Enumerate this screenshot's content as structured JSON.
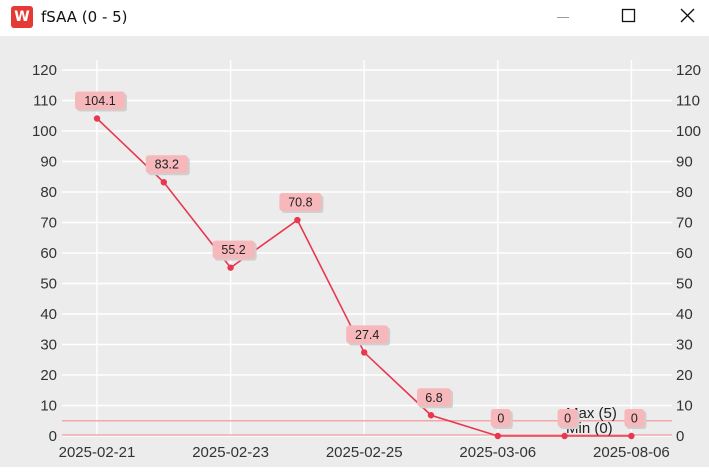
{
  "window": {
    "title": "fSAA (0 - 5)",
    "app_icon_letter": "W",
    "controls": [
      "minimize-icon",
      "maximize-icon",
      "close-icon"
    ]
  },
  "colors": {
    "background": "#ececec",
    "grid": "#ffffff",
    "line": "#e8384f",
    "label_bg": "#f7b8bb",
    "threshold": "#f2a8aa",
    "axis_text": "#333333"
  },
  "chart_data": {
    "type": "line",
    "title": "",
    "x_ticks": [
      "2025-02-21",
      "2025-02-23",
      "2025-02-25",
      "2025-03-06",
      "2025-08-06"
    ],
    "points": [
      {
        "index": 0,
        "value": 104.1,
        "label": "104.1"
      },
      {
        "index": 1,
        "value": 83.2,
        "label": "83.2"
      },
      {
        "index": 2,
        "value": 55.2,
        "label": "55.2"
      },
      {
        "index": 3,
        "value": 70.8,
        "label": "70.8"
      },
      {
        "index": 4,
        "value": 27.4,
        "label": "27.4"
      },
      {
        "index": 5,
        "value": 6.8,
        "label": "6.8"
      },
      {
        "index": 6,
        "value": 0,
        "label": "0"
      },
      {
        "index": 7,
        "value": 0,
        "label": "0"
      },
      {
        "index": 8,
        "value": 0,
        "label": "0"
      }
    ],
    "ylim": [
      0,
      120
    ],
    "y_ticks": [
      0,
      10,
      20,
      30,
      40,
      50,
      60,
      70,
      80,
      90,
      100,
      110,
      120
    ],
    "reference_lines": [
      {
        "label": "Max (5)",
        "value": 5
      },
      {
        "label": "Min (0)",
        "value": 0
      }
    ],
    "grid": true,
    "y_axis_both_sides": true
  }
}
